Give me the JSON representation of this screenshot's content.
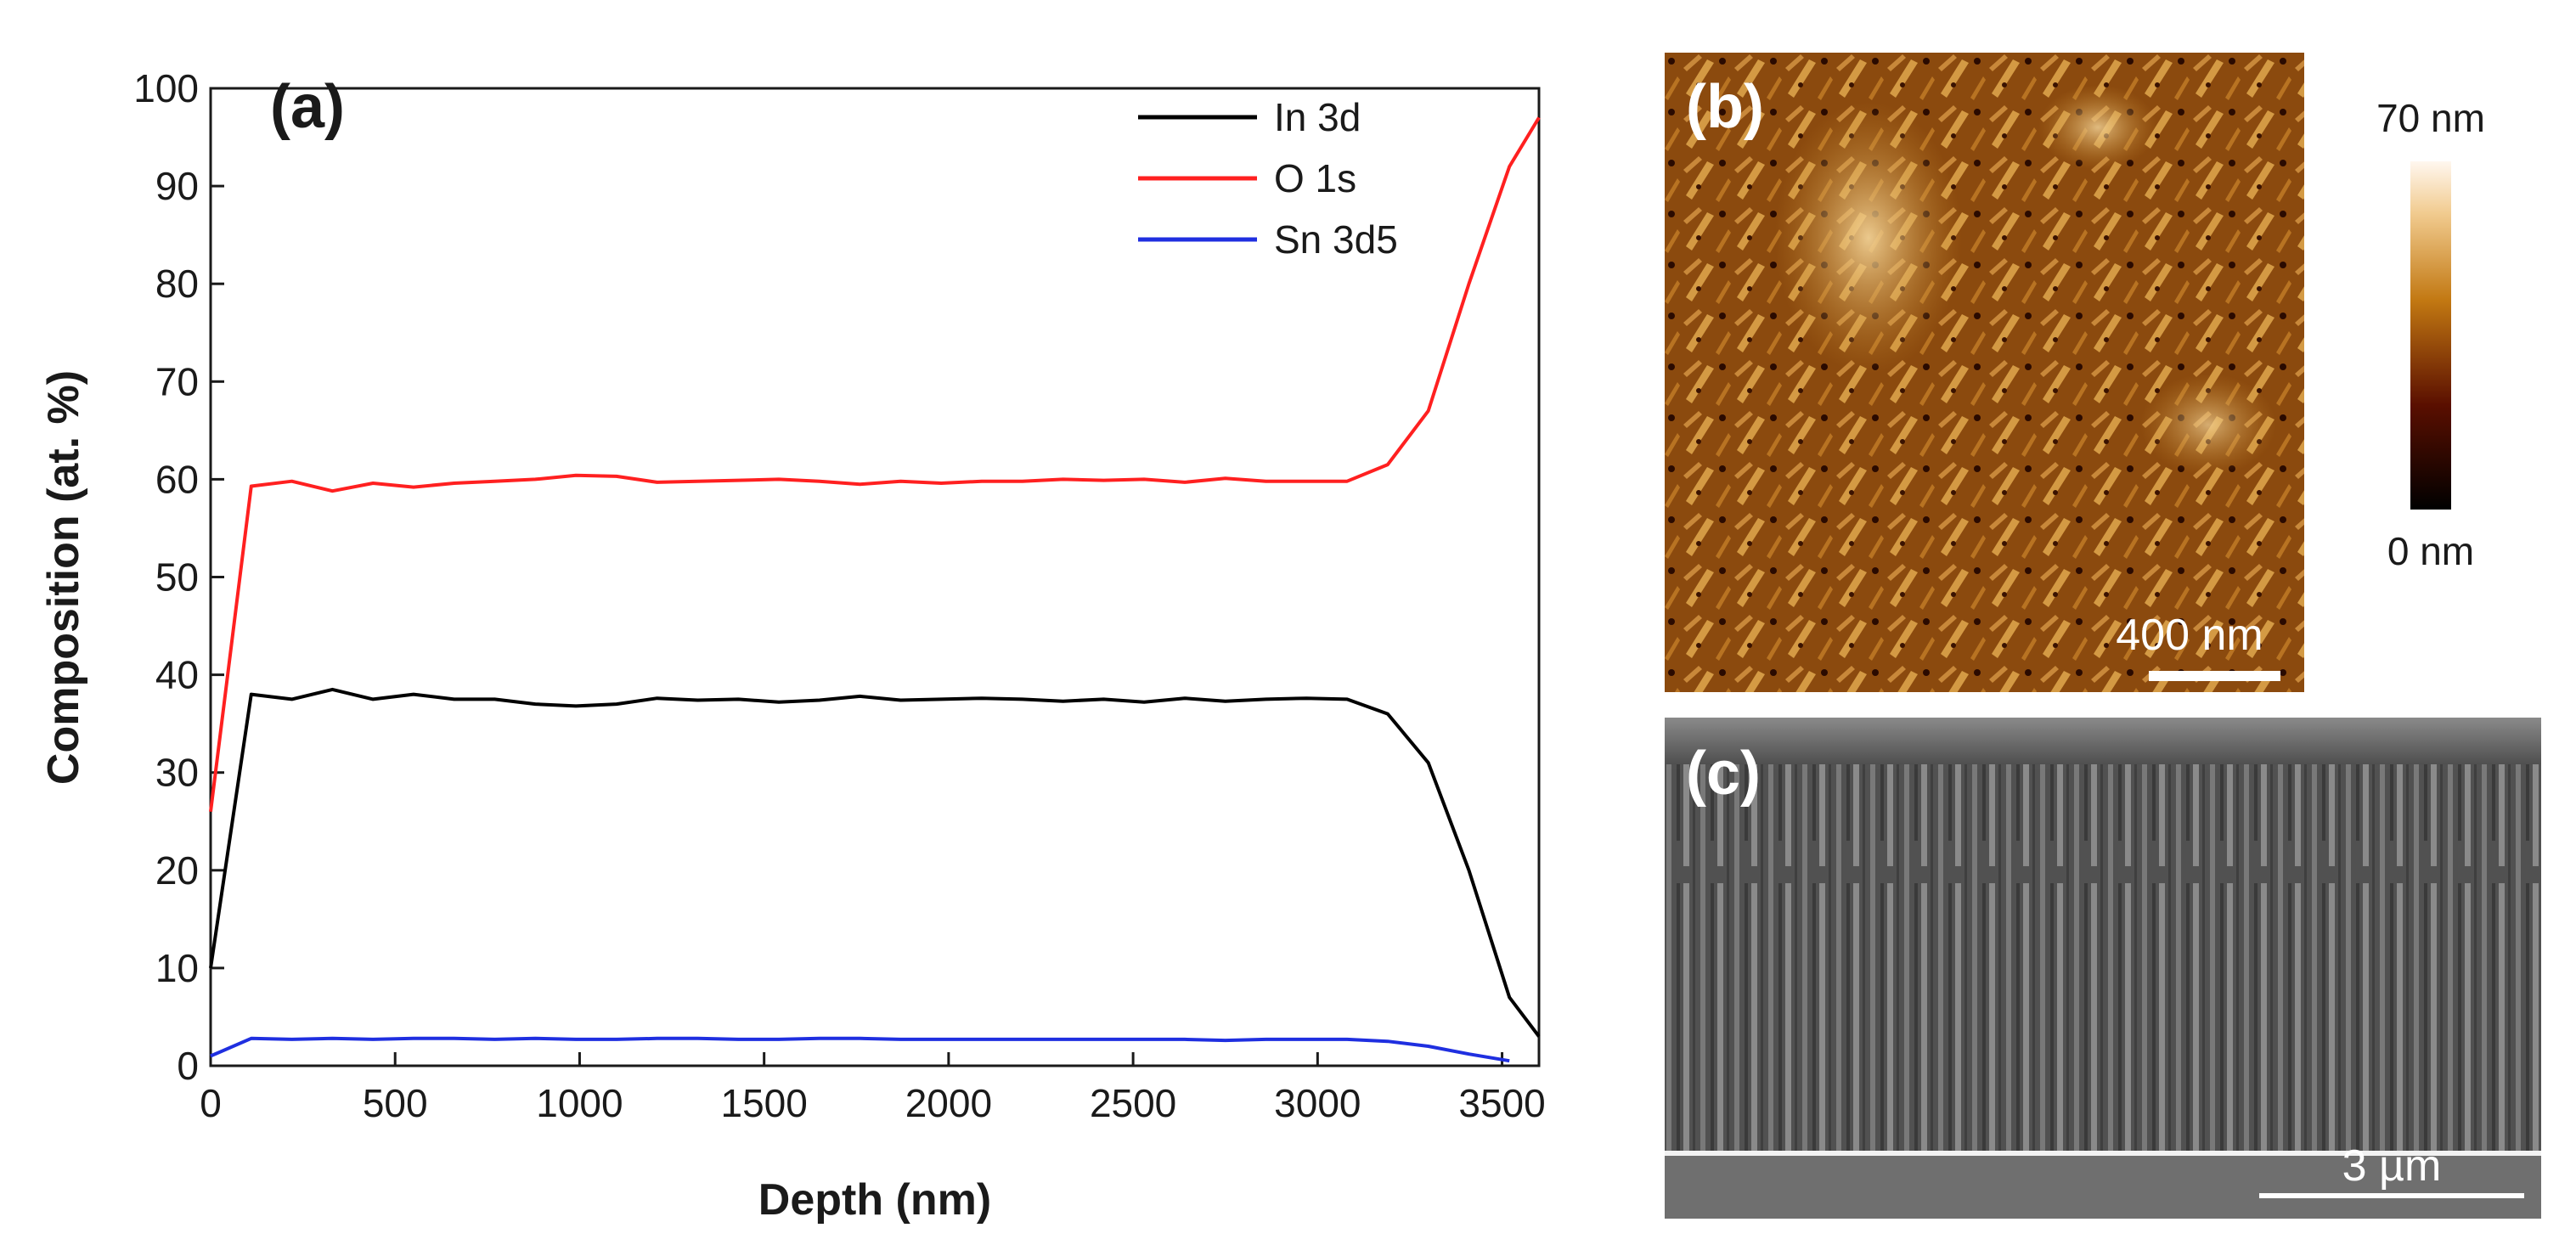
{
  "chart_data": {
    "type": "line",
    "panel_label": "(a)",
    "xlabel": "Depth (nm)",
    "ylabel": "Composition (at. %)",
    "xlim": [
      0,
      3600
    ],
    "ylim": [
      0,
      100
    ],
    "xticks": [
      0,
      500,
      1000,
      1500,
      2000,
      2500,
      3000,
      3500
    ],
    "yticks": [
      0,
      10,
      20,
      30,
      40,
      50,
      60,
      70,
      80,
      90,
      100
    ],
    "legend_position": "top-right",
    "series": [
      {
        "name": "In 3d",
        "color": "#000000",
        "x": [
          0,
          110,
          220,
          330,
          440,
          550,
          660,
          770,
          880,
          990,
          1100,
          1210,
          1320,
          1430,
          1540,
          1650,
          1760,
          1870,
          1980,
          2090,
          2200,
          2310,
          2420,
          2530,
          2640,
          2750,
          2860,
          2970,
          3080,
          3190,
          3300,
          3410,
          3520,
          3600
        ],
        "y": [
          10,
          38,
          37.5,
          38.5,
          37.5,
          38,
          37.5,
          37.5,
          37,
          36.8,
          37,
          37.6,
          37.4,
          37.5,
          37.2,
          37.4,
          37.8,
          37.4,
          37.5,
          37.6,
          37.5,
          37.3,
          37.5,
          37.2,
          37.6,
          37.3,
          37.5,
          37.6,
          37.5,
          36,
          31,
          20,
          7,
          3
        ]
      },
      {
        "name": "O 1s",
        "color": "#ff2020",
        "x": [
          0,
          110,
          220,
          330,
          440,
          550,
          660,
          770,
          880,
          990,
          1100,
          1210,
          1320,
          1430,
          1540,
          1650,
          1760,
          1870,
          1980,
          2090,
          2200,
          2310,
          2420,
          2530,
          2640,
          2750,
          2860,
          2970,
          3080,
          3190,
          3300,
          3410,
          3520,
          3600
        ],
        "y": [
          26,
          59.3,
          59.8,
          58.8,
          59.6,
          59.2,
          59.6,
          59.8,
          60,
          60.4,
          60.3,
          59.7,
          59.8,
          59.9,
          60,
          59.8,
          59.5,
          59.8,
          59.6,
          59.8,
          59.8,
          60,
          59.9,
          60,
          59.7,
          60.1,
          59.8,
          59.8,
          59.8,
          61.5,
          67,
          80,
          92,
          97
        ]
      },
      {
        "name": "Sn 3d5",
        "color": "#1f2fe0",
        "x": [
          0,
          110,
          220,
          330,
          440,
          550,
          660,
          770,
          880,
          990,
          1100,
          1210,
          1320,
          1430,
          1540,
          1650,
          1760,
          1870,
          1980,
          2090,
          2200,
          2310,
          2420,
          2530,
          2640,
          2750,
          2860,
          2970,
          3080,
          3190,
          3300,
          3410,
          3520
        ],
        "y": [
          1,
          2.8,
          2.7,
          2.8,
          2.7,
          2.8,
          2.8,
          2.7,
          2.8,
          2.7,
          2.7,
          2.8,
          2.8,
          2.7,
          2.7,
          2.8,
          2.8,
          2.7,
          2.7,
          2.7,
          2.7,
          2.7,
          2.7,
          2.7,
          2.7,
          2.6,
          2.7,
          2.7,
          2.7,
          2.5,
          2,
          1.2,
          0.5
        ]
      }
    ]
  },
  "panel_b": {
    "label": "(b)",
    "scale_bar_text": "400 nm",
    "colorbar_max_label": "70 nm",
    "colorbar_min_label": "0 nm"
  },
  "panel_c": {
    "label": "(c)",
    "scale_bar_text": "3 µm"
  }
}
